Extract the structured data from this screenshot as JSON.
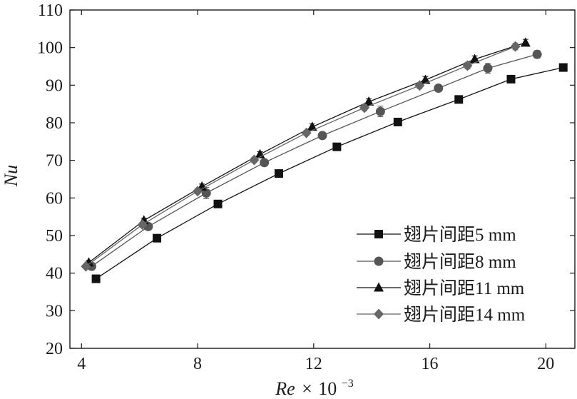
{
  "chart_data": {
    "type": "line",
    "xlabel": {
      "main": "Re",
      "times": "×",
      "base": "10",
      "exp": "−3"
    },
    "ylabel": "Nu",
    "xlim": [
      3.6,
      21
    ],
    "ylim": [
      20,
      110
    ],
    "xticks": [
      4,
      8,
      12,
      16,
      20
    ],
    "yticks": [
      20,
      30,
      40,
      50,
      60,
      70,
      80,
      90,
      100,
      110
    ],
    "grid": false,
    "legend_position": "bottom-right",
    "series": [
      {
        "name": "翅片间距5 mm",
        "marker": "square",
        "color": "#111111",
        "x": [
          4.5,
          6.6,
          8.7,
          10.8,
          12.8,
          14.9,
          17.0,
          18.8,
          20.6
        ],
        "y": [
          38.5,
          49.3,
          58.4,
          66.5,
          73.6,
          80.2,
          86.2,
          91.6,
          94.7
        ],
        "err": [
          0.5,
          0.6,
          0.7,
          0.7,
          0.7,
          0.8,
          0.8,
          0.9,
          0.9
        ]
      },
      {
        "name": "翅片间距8 mm",
        "marker": "circle",
        "color": "#555555",
        "x": [
          4.35,
          6.3,
          8.3,
          10.3,
          12.3,
          14.3,
          16.3,
          18.0,
          19.7
        ],
        "y": [
          41.8,
          52.4,
          61.3,
          69.4,
          76.6,
          83.0,
          89.2,
          94.5,
          98.2
        ],
        "err": [
          0.6,
          0.7,
          1.5,
          0.8,
          0.8,
          1.4,
          0.9,
          1.3,
          1.0
        ]
      },
      {
        "name": "翅片间距11 mm",
        "marker": "triangle",
        "color": "#111111",
        "x": [
          4.25,
          6.15,
          8.15,
          10.15,
          11.95,
          13.9,
          15.85,
          17.55,
          19.3
        ],
        "y": [
          42.8,
          54.0,
          63.0,
          71.6,
          78.9,
          85.6,
          91.4,
          96.9,
          101.3
        ],
        "err": [
          0.6,
          0.6,
          0.7,
          0.7,
          0.8,
          0.8,
          0.9,
          0.9,
          0.9
        ]
      },
      {
        "name": "翅片间距14 mm",
        "marker": "diamond",
        "color": "#666666",
        "x": [
          4.15,
          6.1,
          8.0,
          9.95,
          11.75,
          13.75,
          15.65,
          17.3,
          18.95
        ],
        "y": [
          41.8,
          52.9,
          61.8,
          70.1,
          77.3,
          84.0,
          89.9,
          95.2,
          100.3
        ],
        "err": [
          0.5,
          0.6,
          0.7,
          0.7,
          0.7,
          0.8,
          0.8,
          0.9,
          0.9
        ]
      }
    ]
  }
}
